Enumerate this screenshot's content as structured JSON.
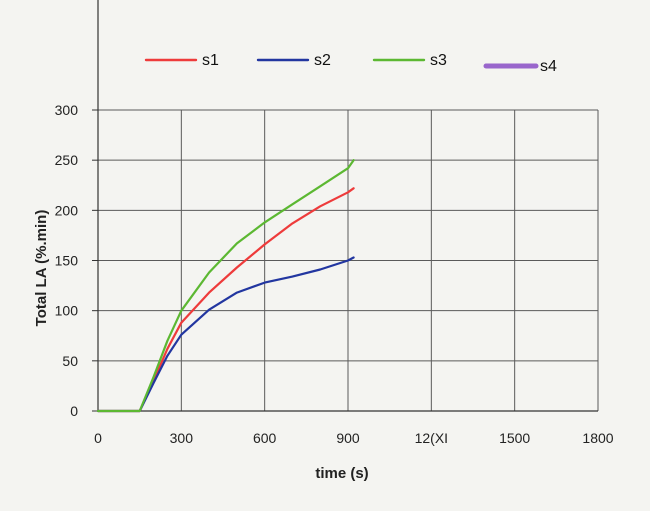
{
  "chart_data": {
    "type": "line",
    "xlabel": "time (s)",
    "ylabel": "Total LA (%.min)",
    "x_ticks": [
      "0",
      "300",
      "600",
      "900",
      "12(XI",
      "1500",
      "1800"
    ],
    "y_ticks": [
      "0",
      "50",
      "100",
      "150",
      "200",
      "250",
      "300"
    ],
    "xlim": [
      0,
      1800
    ],
    "ylim": [
      0,
      300
    ],
    "grid": true,
    "legend_position": "top",
    "series": [
      {
        "name": "s1",
        "color": "#ee3b3b",
        "points": [
          [
            0,
            0
          ],
          [
            150,
            0
          ],
          [
            200,
            30
          ],
          [
            250,
            62
          ],
          [
            300,
            88
          ],
          [
            400,
            118
          ],
          [
            500,
            143
          ],
          [
            600,
            166
          ],
          [
            700,
            187
          ],
          [
            800,
            204
          ],
          [
            900,
            218
          ],
          [
            920,
            222
          ]
        ]
      },
      {
        "name": "s2",
        "color": "#2236a0",
        "points": [
          [
            0,
            0
          ],
          [
            150,
            0
          ],
          [
            200,
            28
          ],
          [
            250,
            55
          ],
          [
            300,
            76
          ],
          [
            400,
            101
          ],
          [
            500,
            118
          ],
          [
            600,
            128
          ],
          [
            700,
            134
          ],
          [
            800,
            141
          ],
          [
            900,
            150
          ],
          [
            920,
            153
          ]
        ]
      },
      {
        "name": "s3",
        "color": "#5cb832",
        "points": [
          [
            0,
            0
          ],
          [
            150,
            0
          ],
          [
            200,
            34
          ],
          [
            250,
            70
          ],
          [
            300,
            100
          ],
          [
            400,
            138
          ],
          [
            500,
            167
          ],
          [
            600,
            188
          ],
          [
            700,
            206
          ],
          [
            800,
            224
          ],
          [
            900,
            242
          ],
          [
            920,
            250
          ]
        ]
      },
      {
        "name": "s4",
        "color": "#9966cc",
        "points": []
      }
    ]
  }
}
